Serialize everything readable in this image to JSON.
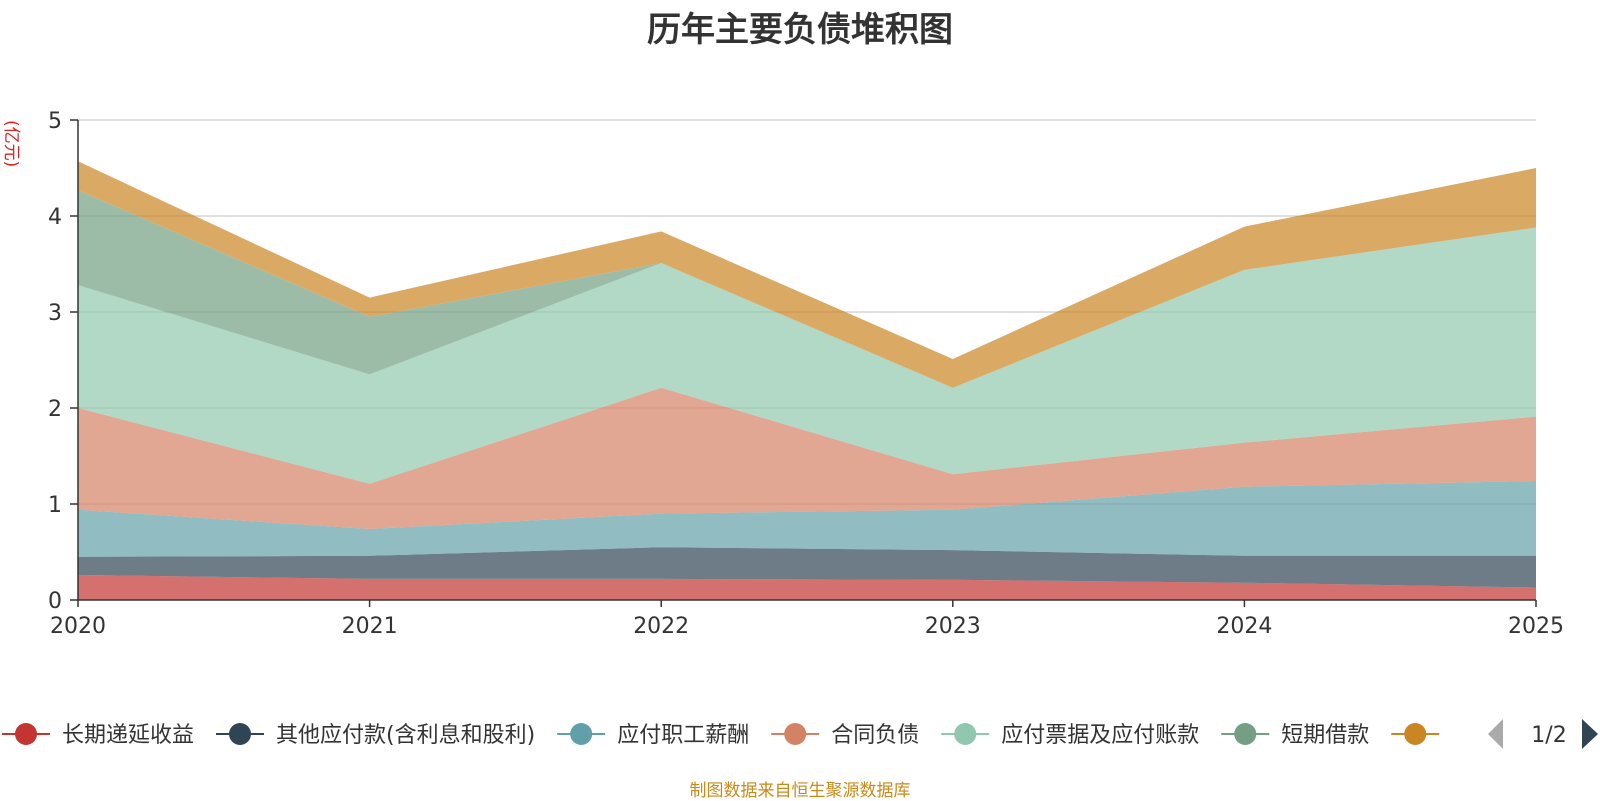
{
  "title": "历年主要负债堆积图",
  "unit_label": "(亿元)",
  "source_text": "制图数据来自恒生聚源数据库",
  "legend": {
    "page_indicator": "1/2",
    "items": [
      {
        "label": "长期递延收益",
        "color": "#c23531"
      },
      {
        "label": "其他应付款(含利息和股利)",
        "color": "#2f4554"
      },
      {
        "label": "应付职工薪酬",
        "color": "#61a0a8"
      },
      {
        "label": "合同负债",
        "color": "#d48265"
      },
      {
        "label": "应付票据及应付账款",
        "color": "#91c7ae"
      },
      {
        "label": "短期借款",
        "color": "#749f83"
      },
      {
        "label": "",
        "color": "#ca8622"
      }
    ]
  },
  "chart_data": {
    "type": "area",
    "stacked": true,
    "title": "历年主要负债堆积图",
    "ylabel": "(亿元)",
    "xlabel": "",
    "categories": [
      "2020",
      "2021",
      "2022",
      "2023",
      "2024",
      "2025"
    ],
    "ylim": [
      0,
      5
    ],
    "yticks": [
      0,
      1,
      2,
      3,
      4,
      5
    ],
    "grid": true,
    "series": [
      {
        "name": "长期递延收益",
        "color": "#c23531",
        "values": [
          0.26,
          0.22,
          0.22,
          0.21,
          0.18,
          0.13
        ]
      },
      {
        "name": "其他应付款(含利息和股利)",
        "color": "#2f4554",
        "values": [
          0.19,
          0.24,
          0.33,
          0.31,
          0.28,
          0.33
        ]
      },
      {
        "name": "应付职工薪酬",
        "color": "#61a0a8",
        "values": [
          0.49,
          0.28,
          0.35,
          0.42,
          0.72,
          0.78
        ]
      },
      {
        "name": "合同负债",
        "color": "#d48265",
        "values": [
          1.06,
          0.47,
          1.31,
          0.37,
          0.46,
          0.67
        ]
      },
      {
        "name": "应付票据及应付账款",
        "color": "#91c7ae",
        "values": [
          1.28,
          1.14,
          1.3,
          0.9,
          1.8,
          1.97
        ]
      },
      {
        "name": "短期借款",
        "color": "#749f83",
        "values": [
          0.99,
          0.6,
          0.0,
          0.0,
          0.0,
          0.0
        ]
      },
      {
        "name": "",
        "color": "#ca8622",
        "values": [
          0.3,
          0.2,
          0.33,
          0.3,
          0.45,
          0.62
        ]
      }
    ]
  }
}
